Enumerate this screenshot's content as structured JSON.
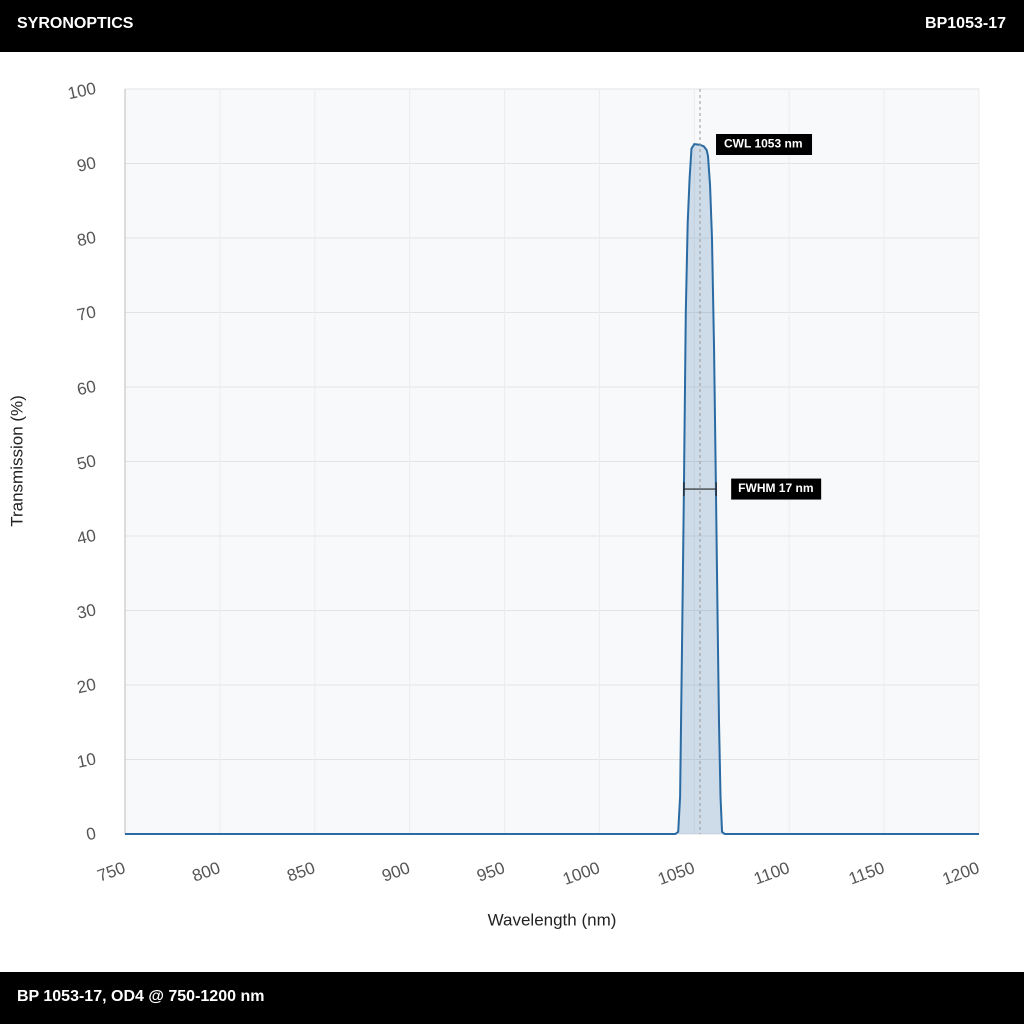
{
  "header": {
    "brand": "SYRONOPTICS",
    "part": "BP1053-17"
  },
  "footer": {
    "caption": "BP 1053-17, OD4 @ 750-1200 nm"
  },
  "chart_data": {
    "type": "line",
    "x_label": "Wavelength (nm)",
    "y_label": "Transmission (%)",
    "series": [
      {
        "name": "BP1053-17",
        "color": "#2a6ba3",
        "x": [
          750,
          1040,
          1041.5,
          1042.5,
          1043.5,
          1044.5,
          1045.5,
          1046.5,
          1047.5,
          1048.5,
          1050,
          1053,
          1055,
          1056.5,
          1057.2,
          1058.3,
          1059.3,
          1060.4,
          1061.4,
          1062.3,
          1063,
          1063.8,
          1064.6,
          1066,
          1200
        ],
        "values": [
          0,
          0,
          0.3,
          5,
          25,
          46,
          70,
          82,
          88,
          92,
          92.6,
          92.5,
          92.3,
          91.8,
          91,
          87,
          80,
          65,
          46,
          28,
          15,
          5,
          0.3,
          0,
          0
        ]
      }
    ],
    "annotations": [
      {
        "text": "CWL 1053 nm",
        "x": 1053
      },
      {
        "text": "FWHM 17 nm",
        "x": [
          1044.5,
          1061.5
        ],
        "y": 46.3
      }
    ],
    "xlim": [
      750,
      1200
    ],
    "xticks": [
      750,
      800,
      850,
      900,
      950,
      1000,
      1050,
      1100,
      1150,
      1200
    ],
    "ylim": [
      0,
      100
    ],
    "yticks": [
      0,
      10,
      20,
      30,
      40,
      50,
      60,
      70,
      80,
      90,
      100
    ],
    "grid": true
  }
}
